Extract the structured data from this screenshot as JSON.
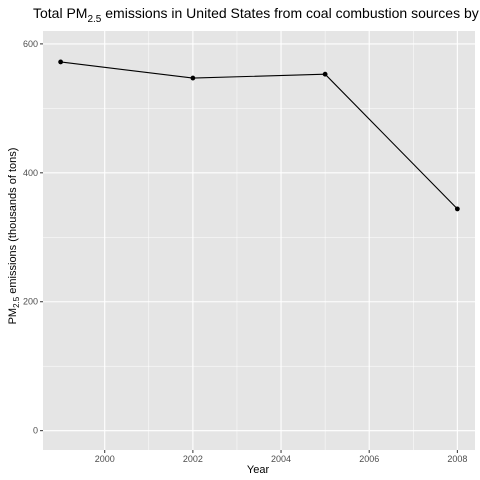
{
  "chart_data": {
    "type": "line",
    "title_parts": {
      "before": "Total PM",
      "subscript": "2.5",
      "after": " emissions in United States from coal combustion sources by year"
    },
    "xlabel": "Year",
    "ylabel_parts": {
      "before": "PM",
      "subscript": "2.5",
      "after": " emissions (thousands of tons)"
    },
    "x": [
      1999,
      2002,
      2005,
      2008
    ],
    "y": [
      572,
      547,
      553,
      344
    ],
    "xlim": [
      1998.6,
      2008.4
    ],
    "ylim": [
      -30,
      620
    ],
    "x_ticks": [
      "2000",
      "2002",
      "2004",
      "2006",
      "2008"
    ],
    "y_ticks": [
      "0",
      "200",
      "400",
      "600"
    ],
    "grid": true,
    "panel_background": "#e5e5e5",
    "grid_color": "#ffffff",
    "line_color": "#000000"
  }
}
